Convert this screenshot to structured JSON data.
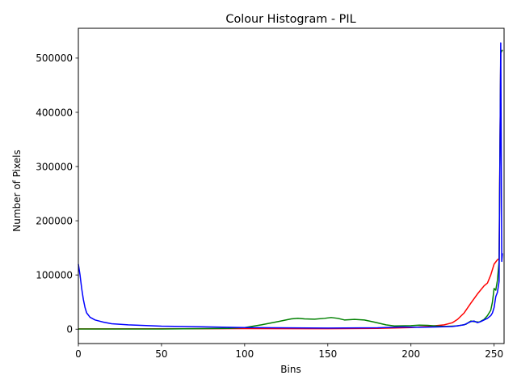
{
  "chart_data": {
    "type": "line",
    "title": "Colour Histogram - PIL",
    "xlabel": "Bins",
    "ylabel": "Number of Pixels",
    "xlim": [
      0,
      256
    ],
    "ylim": [
      -26500,
      555000
    ],
    "xticks": [
      0,
      50,
      100,
      150,
      200,
      250
    ],
    "xtick_labels": [
      "0",
      "50",
      "100",
      "150",
      "200",
      "250"
    ],
    "yticks": [
      0,
      100000,
      200000,
      300000,
      400000,
      500000
    ],
    "ytick_labels": [
      "0",
      "100000",
      "200000",
      "300000",
      "400000",
      "500000"
    ],
    "grid": false,
    "legend": "none",
    "series": [
      {
        "color": "#ff0000",
        "points": [
          [
            0,
            500
          ],
          [
            50,
            800
          ],
          [
            100,
            1000
          ],
          [
            150,
            900
          ],
          [
            180,
            1500
          ],
          [
            200,
            3000
          ],
          [
            210,
            5000
          ],
          [
            220,
            8000
          ],
          [
            225,
            12000
          ],
          [
            228,
            18000
          ],
          [
            232,
            30000
          ],
          [
            236,
            48000
          ],
          [
            240,
            65000
          ],
          [
            244,
            80000
          ],
          [
            246,
            85000
          ],
          [
            248,
            100000
          ],
          [
            250,
            120000
          ],
          [
            252,
            128000
          ],
          [
            253,
            130000
          ],
          [
            254,
            510000
          ],
          [
            255,
            515000
          ]
        ]
      },
      {
        "color": "#008000",
        "points": [
          [
            0,
            300
          ],
          [
            50,
            400
          ],
          [
            90,
            1500
          ],
          [
            100,
            3000
          ],
          [
            110,
            8000
          ],
          [
            120,
            14000
          ],
          [
            128,
            19000
          ],
          [
            132,
            20000
          ],
          [
            136,
            19000
          ],
          [
            142,
            18500
          ],
          [
            148,
            20000
          ],
          [
            152,
            21500
          ],
          [
            156,
            20000
          ],
          [
            160,
            17000
          ],
          [
            166,
            18000
          ],
          [
            172,
            17000
          ],
          [
            178,
            13000
          ],
          [
            185,
            8000
          ],
          [
            190,
            6000
          ],
          [
            200,
            6500
          ],
          [
            205,
            7500
          ],
          [
            210,
            7000
          ],
          [
            215,
            6000
          ],
          [
            220,
            5000
          ],
          [
            228,
            6000
          ],
          [
            233,
            9000
          ],
          [
            236,
            15000
          ],
          [
            238,
            14000
          ],
          [
            241,
            13000
          ],
          [
            244,
            18000
          ],
          [
            246,
            25000
          ],
          [
            248,
            35000
          ],
          [
            249,
            50000
          ],
          [
            250,
            75000
          ],
          [
            251,
            72000
          ],
          [
            252,
            90000
          ],
          [
            253,
            125000
          ],
          [
            254,
            510000
          ],
          [
            255,
            515000
          ]
        ]
      },
      {
        "color": "#0000ff",
        "points": [
          [
            0,
            120000
          ],
          [
            1,
            100000
          ],
          [
            2,
            75000
          ],
          [
            3,
            55000
          ],
          [
            4,
            40000
          ],
          [
            5,
            30000
          ],
          [
            7,
            22000
          ],
          [
            10,
            17000
          ],
          [
            15,
            13000
          ],
          [
            20,
            10000
          ],
          [
            30,
            8000
          ],
          [
            50,
            5500
          ],
          [
            80,
            4000
          ],
          [
            100,
            3000
          ],
          [
            150,
            2000
          ],
          [
            180,
            2500
          ],
          [
            195,
            4000
          ],
          [
            205,
            3500
          ],
          [
            215,
            4000
          ],
          [
            225,
            5000
          ],
          [
            232,
            8000
          ],
          [
            236,
            14000
          ],
          [
            238,
            15000
          ],
          [
            240,
            12000
          ],
          [
            242,
            14000
          ],
          [
            244,
            17000
          ],
          [
            246,
            20000
          ],
          [
            248,
            25000
          ],
          [
            249,
            30000
          ],
          [
            250,
            40000
          ],
          [
            251,
            60000
          ],
          [
            252,
            68000
          ],
          [
            253,
            88000
          ],
          [
            254,
            528000
          ],
          [
            254.6,
            125000
          ],
          [
            255,
            140000
          ]
        ]
      }
    ]
  }
}
